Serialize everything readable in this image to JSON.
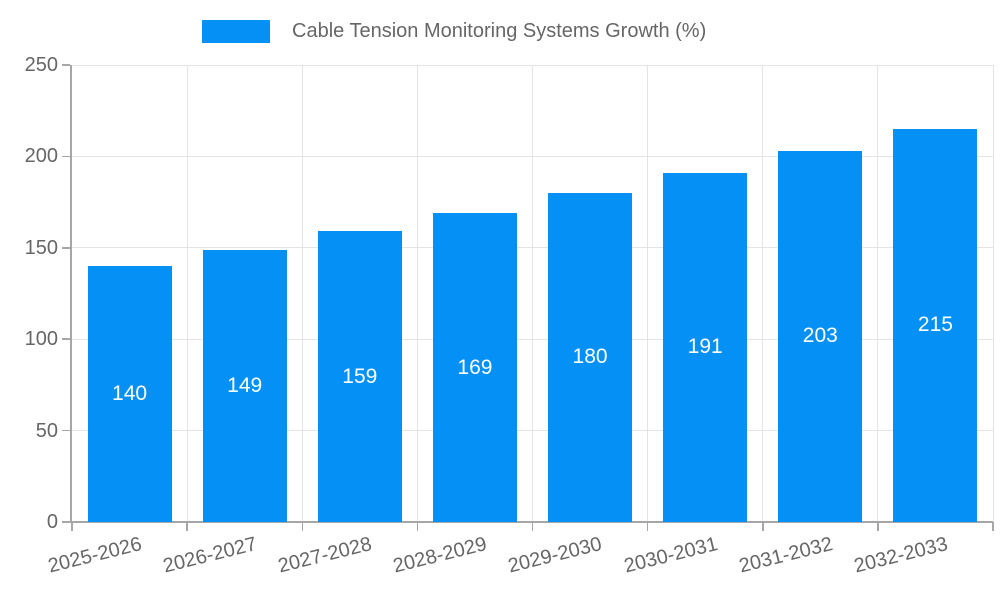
{
  "colors": {
    "accent": "#0590f5",
    "text": "#666666",
    "grid": "#e4e4e4",
    "axis": "#a6a6a6",
    "value_label": "#ffffff",
    "background": "#ffffff"
  },
  "legend": {
    "label": "Cable Tension Monitoring Systems Growth (%)",
    "position": "top"
  },
  "chart_data": {
    "type": "bar",
    "title": "Cable Tension Monitoring Systems Growth (%)",
    "categories": [
      "2025-2026",
      "2026-2027",
      "2027-2028",
      "2028-2029",
      "2029-2030",
      "2030-2031",
      "2031-2032",
      "2032-2033"
    ],
    "values": [
      140,
      149,
      159,
      169,
      180,
      191,
      203,
      215
    ],
    "value_labels": [
      "140",
      "149",
      "159",
      "169",
      "180",
      "191",
      "203",
      "215"
    ],
    "xlabel": "",
    "ylabel": "",
    "ylim": [
      0,
      250
    ],
    "yticks": [
      0,
      50,
      100,
      150,
      200,
      250
    ],
    "grid": true,
    "legend_position": "top",
    "value_labels_inside_bars": true,
    "xtick_rotation_deg": -14
  }
}
